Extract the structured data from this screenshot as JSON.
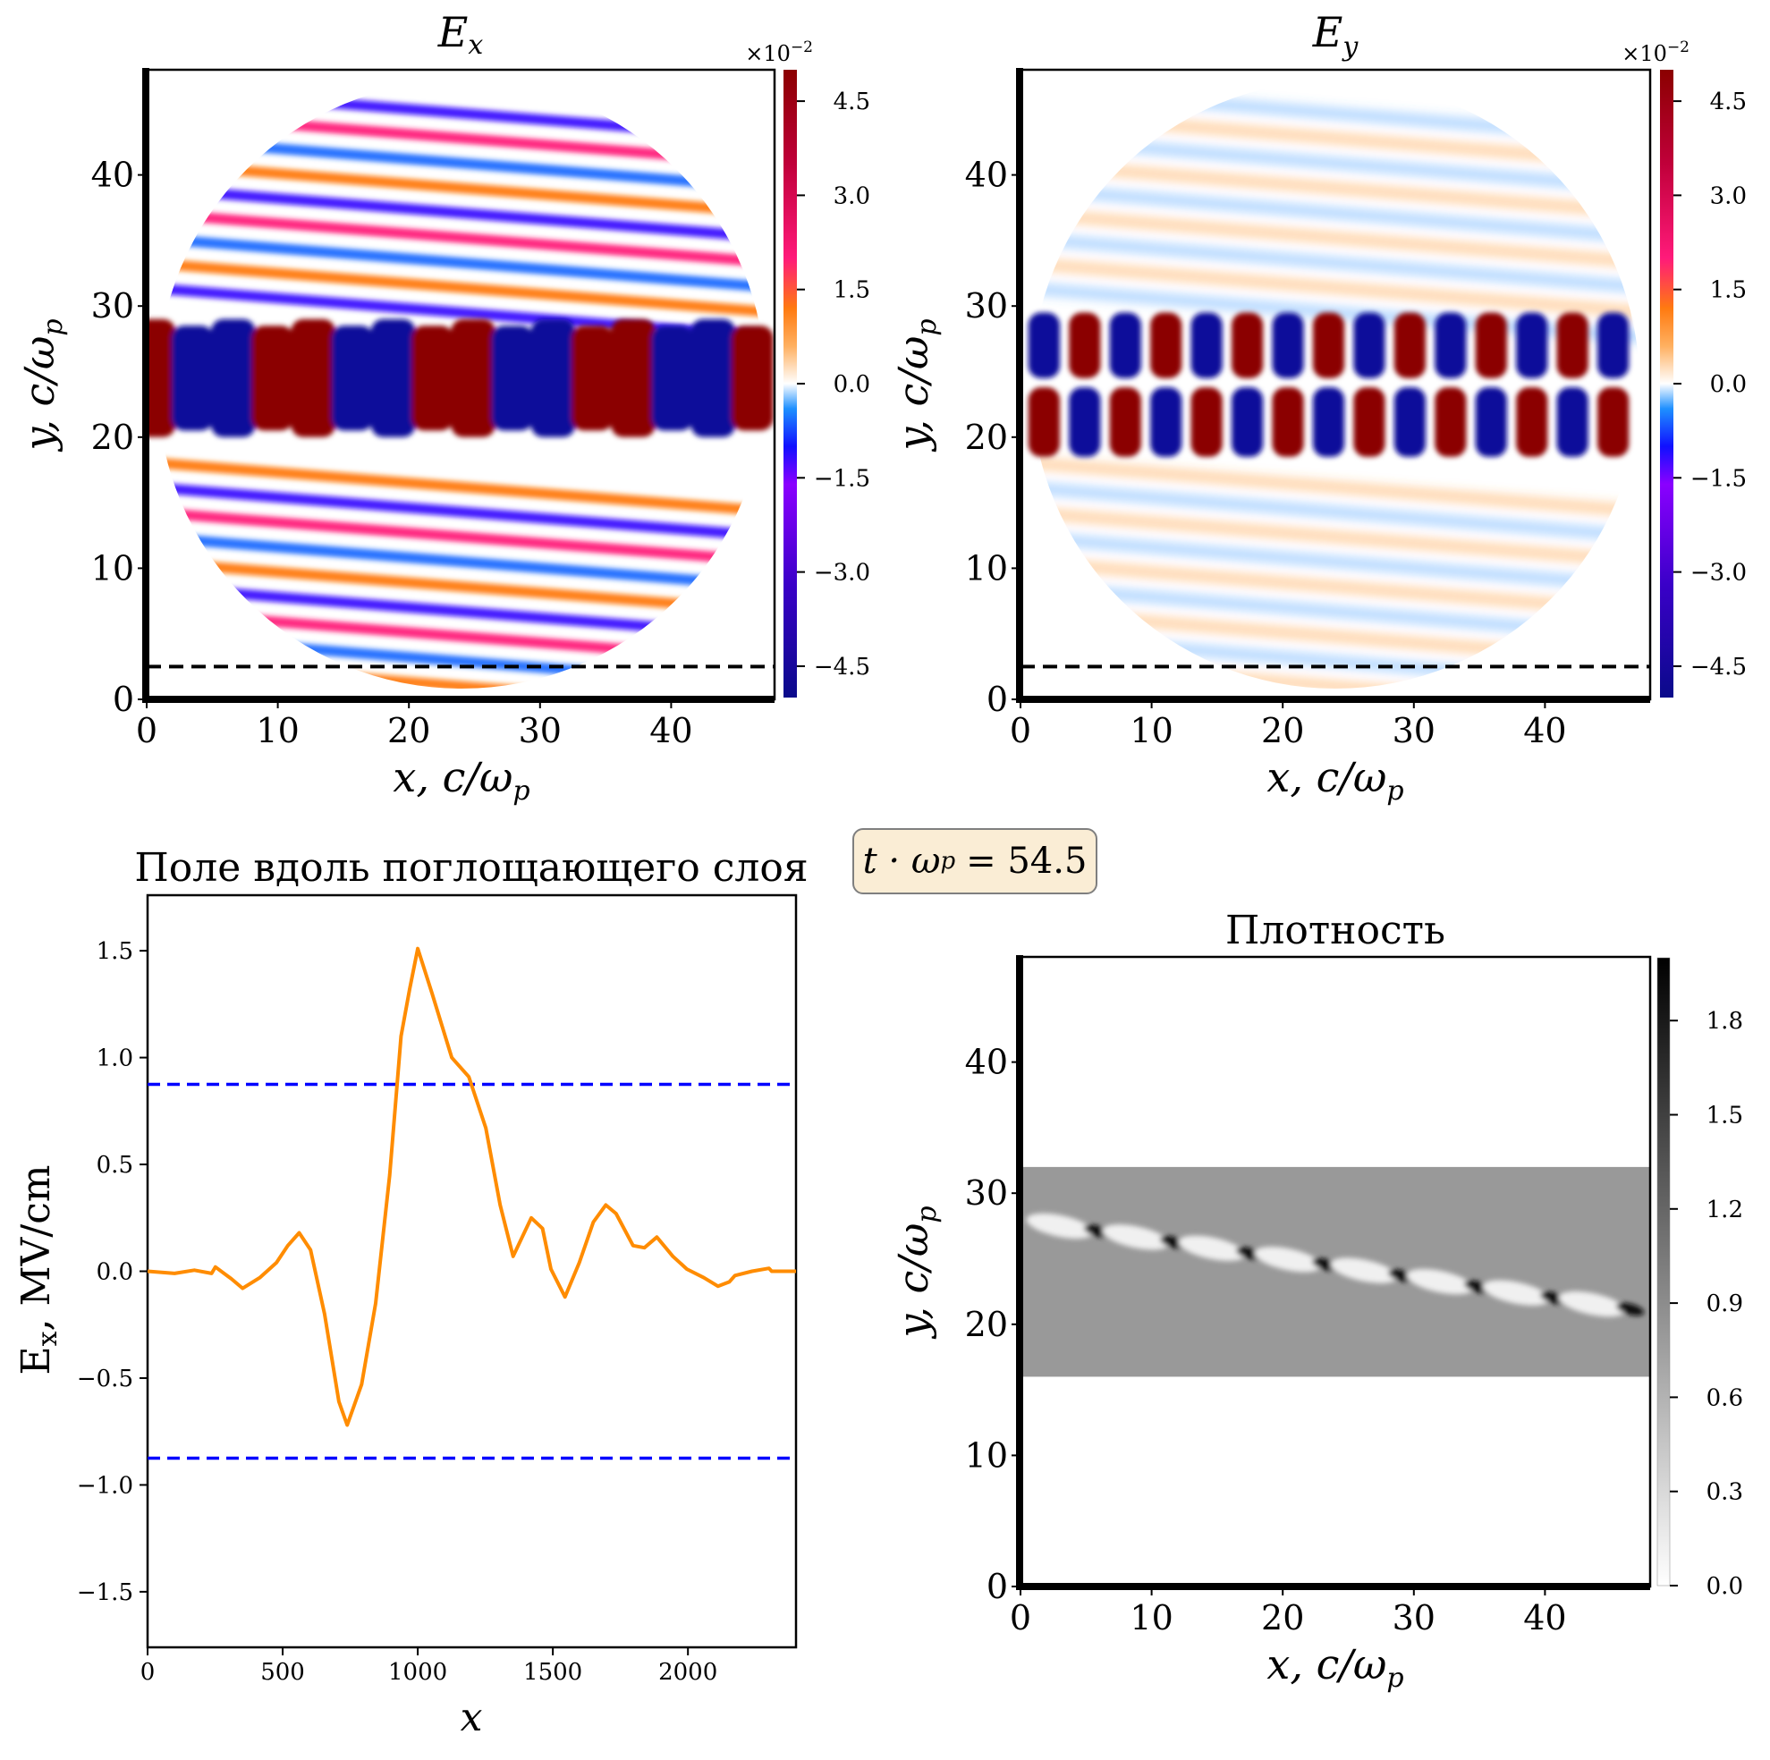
{
  "time_box": {
    "text": "t · ωp = 54.5",
    "label": "t · ω",
    "sub": "p",
    "value": "= 54.5"
  },
  "chart_data": [
    {
      "id": "ex",
      "type": "heatmap",
      "title": "E",
      "title_sub": "x",
      "xlabel": "x, c/ω",
      "xlabel_sub": "p",
      "ylabel": "y, c/ω",
      "ylabel_sub": "p",
      "xlim": [
        0,
        48
      ],
      "ylim": [
        0,
        48
      ],
      "xticks": [
        0,
        10,
        20,
        30,
        40
      ],
      "yticks": [
        0,
        10,
        20,
        30,
        40
      ],
      "colorbar": {
        "min": -5.0,
        "max": 5.0,
        "ticks": [
          4.5,
          3.0,
          1.5,
          0.0,
          -1.5,
          -3.0,
          -4.5
        ],
        "tick_labels": [
          "4.5",
          "3.0",
          "1.5",
          "0.0",
          "−1.5",
          "−3.0",
          "−4.5"
        ],
        "multiplier": "×10",
        "multiplier_exp": "−2",
        "colormap": "blue-purple-white-orange-red"
      },
      "hline": {
        "y": 2.5,
        "style": "dashed",
        "color": "#000000"
      },
      "description": "Channel 20–30 with alternating red/blue wake cells along x; diagonal striped wave pattern inside circular region centered near (24,24), radius ~23"
    },
    {
      "id": "ey",
      "type": "heatmap",
      "title": "E",
      "title_sub": "y",
      "xlabel": "x, c/ω",
      "xlabel_sub": "p",
      "ylabel": "y, c/ω",
      "ylabel_sub": "p",
      "xlim": [
        0,
        48
      ],
      "ylim": [
        0,
        48
      ],
      "xticks": [
        0,
        10,
        20,
        30,
        40
      ],
      "yticks": [
        0,
        10,
        20,
        30,
        40
      ],
      "colorbar": {
        "min": -5.0,
        "max": 5.0,
        "ticks": [
          4.5,
          3.0,
          1.5,
          0.0,
          -1.5,
          -3.0,
          -4.5
        ],
        "tick_labels": [
          "4.5",
          "3.0",
          "1.5",
          "0.0",
          "−1.5",
          "−3.0",
          "−4.5"
        ],
        "multiplier": "×10",
        "multiplier_exp": "−2",
        "colormap": "blue-purple-white-orange-red"
      },
      "hline": {
        "y": 2.5,
        "style": "dashed",
        "color": "#000000"
      },
      "description": "Two rows of alternating red/blue cells in channel 17–30, weak orange/blue wave pattern outside"
    },
    {
      "id": "line",
      "type": "line",
      "title": "Поле вдоль поглощающего слоя",
      "xlabel": "x",
      "ylabel": "E",
      "ylabel_sub": "x",
      "ylabel_rest": ", MV/cm",
      "xlim": [
        0,
        2400
      ],
      "ylim": [
        -1.76,
        1.76
      ],
      "xticks": [
        0,
        500,
        1000,
        1500,
        2000
      ],
      "xtick_labels": [
        "0",
        "500",
        "1000",
        "1500",
        "2000"
      ],
      "yticks": [
        1.5,
        1.0,
        0.5,
        0.0,
        -0.5,
        -1.0,
        -1.5
      ],
      "ytick_labels": [
        "1.5",
        "1.0",
        "0.5",
        "0.0",
        "−0.5",
        "−1.0",
        "−1.5"
      ],
      "series": [
        {
          "name": "Ex",
          "color": "#ff8c00",
          "x": [
            0,
            100,
            173,
            237,
            251,
            310,
            352,
            415,
            477,
            519,
            561,
            603,
            655,
            708,
            739,
            792,
            844,
            896,
            938,
            970,
            1000,
            1053,
            1126,
            1189,
            1252,
            1305,
            1353,
            1420,
            1462,
            1493,
            1545,
            1598,
            1650,
            1696,
            1734,
            1797,
            1839,
            1885,
            1944,
            1996,
            2059,
            2111,
            2153,
            2174,
            2237,
            2300,
            2310,
            2400
          ],
          "y": [
            0,
            -0.01,
            0.005,
            -0.01,
            0.02,
            -0.035,
            -0.08,
            -0.03,
            0.04,
            0.12,
            0.18,
            0.1,
            -0.2,
            -0.61,
            -0.72,
            -0.53,
            -0.15,
            0.45,
            1.1,
            1.32,
            1.51,
            1.3,
            1.0,
            0.91,
            0.67,
            0.31,
            0.07,
            0.25,
            0.2,
            0.01,
            -0.12,
            0.04,
            0.23,
            0.31,
            0.27,
            0.12,
            0.11,
            0.16,
            0.07,
            0.01,
            -0.03,
            -0.07,
            -0.05,
            -0.02,
            0.0,
            0.014,
            0,
            0
          ]
        }
      ],
      "hlines": [
        {
          "y": 0.875,
          "color": "#0000ff",
          "style": "dashed"
        },
        {
          "y": -0.875,
          "color": "#0000ff",
          "style": "dashed"
        }
      ]
    },
    {
      "id": "dens",
      "type": "heatmap",
      "title": "Плотность",
      "xlabel": "x, c/ω",
      "xlabel_sub": "p",
      "ylabel": "y, c/ω",
      "ylabel_sub": "p",
      "xlim": [
        0,
        48
      ],
      "ylim": [
        0,
        48
      ],
      "xticks": [
        0,
        10,
        20,
        30,
        40
      ],
      "yticks": [
        0,
        10,
        20,
        30,
        40
      ],
      "colorbar": {
        "min": 0.0,
        "max": 2.0,
        "ticks": [
          1.8,
          1.5,
          1.2,
          0.9,
          0.6,
          0.3,
          0.0
        ],
        "tick_labels": [
          "1.8",
          "1.5",
          "1.2",
          "0.9",
          "0.6",
          "0.3",
          "0.0"
        ],
        "colormap": "gray_r"
      },
      "plasma_band": {
        "y_min": 16,
        "y_max": 32,
        "value": 1.0
      },
      "description": "Uniform gray plasma slab 16–32 with a diagonal chain of dark/light density spikes from (2,28) to (46,20)"
    }
  ]
}
